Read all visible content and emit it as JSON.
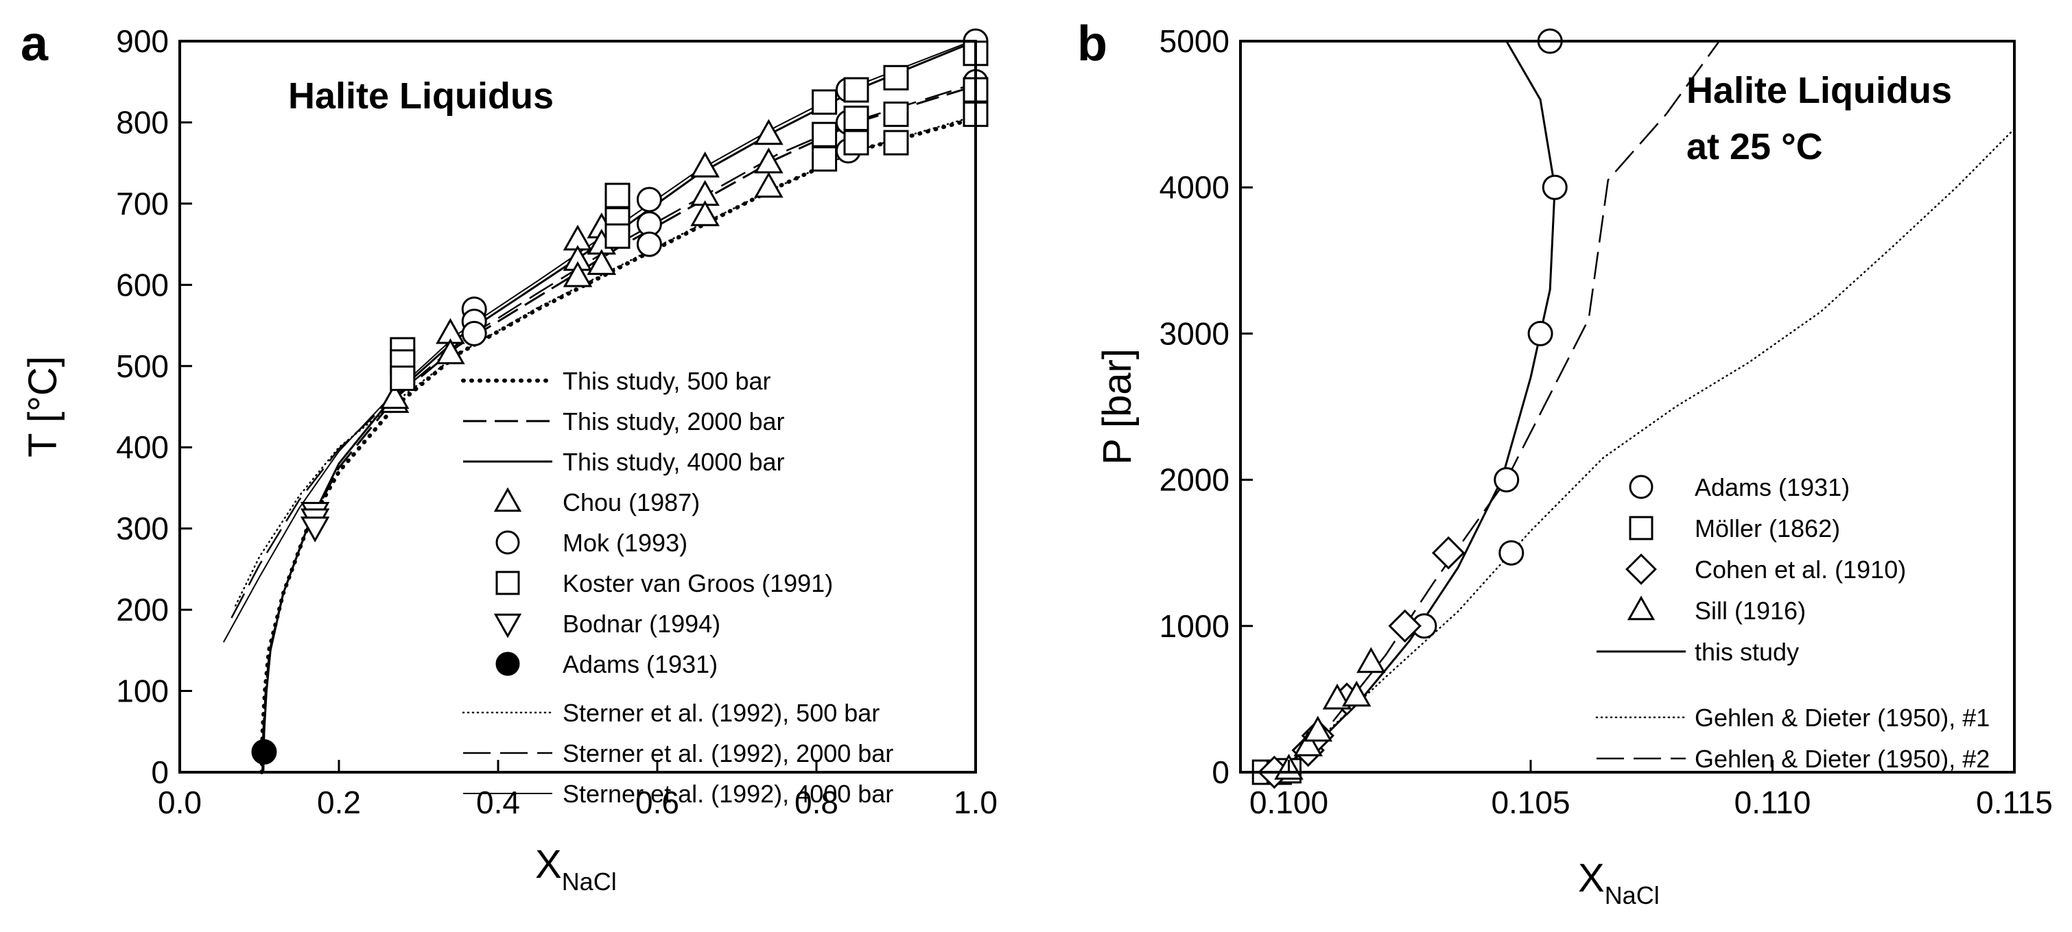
{
  "chart_data": [
    {
      "panel": "a",
      "type": "scatter",
      "title": "Halite Liquidus",
      "xlabel": "X",
      "xlabel_sub": "NaCl",
      "ylabel": "T [°C]",
      "xlim": [
        0.0,
        1.0
      ],
      "ylim": [
        0,
        900
      ],
      "xticks": [
        "0.0",
        "0.2",
        "0.4",
        "0.6",
        "0.8",
        "1.0"
      ],
      "yticks": [
        "0",
        "100",
        "200",
        "300",
        "400",
        "500",
        "600",
        "700",
        "800",
        "900"
      ],
      "legend_position": "center-right",
      "series": [
        {
          "name": "This study, 500 bar",
          "kind": "line",
          "dash": "dot",
          "x": [
            0.103,
            0.104,
            0.107,
            0.112,
            0.13,
            0.16,
            0.2,
            0.27,
            0.35,
            0.45,
            0.55,
            0.65,
            0.75,
            0.85,
            1.0
          ],
          "y": [
            0,
            50,
            100,
            150,
            220,
            300,
            370,
            450,
            515,
            570,
            620,
            670,
            720,
            765,
            805
          ]
        },
        {
          "name": "This study, 2000 bar",
          "kind": "line",
          "dash": "dash",
          "x": [
            0.104,
            0.105,
            0.108,
            0.113,
            0.13,
            0.16,
            0.2,
            0.27,
            0.35,
            0.45,
            0.55,
            0.65,
            0.75,
            0.85,
            1.0
          ],
          "y": [
            0,
            50,
            100,
            150,
            220,
            300,
            375,
            460,
            525,
            585,
            645,
            700,
            755,
            800,
            845
          ]
        },
        {
          "name": "This study, 4000 bar",
          "kind": "line",
          "dash": "solid",
          "x": [
            0.105,
            0.106,
            0.109,
            0.114,
            0.13,
            0.16,
            0.2,
            0.27,
            0.35,
            0.45,
            0.55,
            0.65,
            0.75,
            0.85,
            1.0
          ],
          "y": [
            0,
            50,
            100,
            150,
            220,
            300,
            380,
            465,
            535,
            600,
            665,
            735,
            790,
            840,
            900
          ]
        },
        {
          "name": "Chou (1987)",
          "kind": "marker",
          "marker": "triangle-up",
          "x": [
            0.27,
            0.27,
            0.34,
            0.34,
            0.5,
            0.5,
            0.5,
            0.53,
            0.53,
            0.53,
            0.66,
            0.66,
            0.66,
            0.74,
            0.74,
            0.74
          ],
          "y": [
            455,
            460,
            540,
            515,
            655,
            630,
            610,
            670,
            650,
            625,
            745,
            710,
            685,
            785,
            750,
            720
          ]
        },
        {
          "name": "Mok (1993)",
          "kind": "marker",
          "marker": "circle",
          "x": [
            0.37,
            0.37,
            0.37,
            0.59,
            0.59,
            0.59,
            0.84,
            0.84,
            0.84,
            1.0,
            1.0,
            1.0
          ],
          "y": [
            570,
            555,
            540,
            705,
            675,
            650,
            840,
            800,
            765,
            900,
            850,
            810
          ]
        },
        {
          "name": "Koster van Groos (1991)",
          "kind": "marker",
          "marker": "square",
          "x": [
            0.28,
            0.28,
            0.28,
            0.55,
            0.55,
            0.55,
            0.81,
            0.81,
            0.81,
            0.85,
            0.85,
            0.85,
            0.9,
            0.9,
            0.9,
            1.0,
            1.0,
            1.0
          ],
          "y": [
            520,
            505,
            485,
            710,
            680,
            660,
            825,
            785,
            755,
            840,
            805,
            775,
            855,
            810,
            775,
            885,
            840,
            810
          ]
        },
        {
          "name": "Bodnar (1994)",
          "kind": "marker",
          "marker": "triangle-down",
          "x": [
            0.17,
            0.17,
            0.17
          ],
          "y": [
            320,
            312,
            302
          ]
        },
        {
          "name": "Adams (1931)",
          "kind": "marker",
          "marker": "filled-circle",
          "x": [
            0.106
          ],
          "y": [
            25
          ]
        },
        {
          "name": "Sterner et al. (1992), 500 bar",
          "kind": "line",
          "dash": "fine-dot",
          "x": [
            0.07,
            0.1,
            0.15,
            0.2,
            0.27,
            0.35,
            0.45,
            0.55,
            0.65,
            0.75,
            0.85,
            1.0
          ],
          "y": [
            205,
            265,
            340,
            400,
            455,
            515,
            572,
            622,
            672,
            720,
            765,
            808
          ]
        },
        {
          "name": "Sterner et al. (1992), 2000 bar",
          "kind": "line",
          "dash": "long-dash",
          "x": [
            0.065,
            0.1,
            0.15,
            0.2,
            0.27,
            0.35,
            0.45,
            0.55,
            0.65,
            0.75,
            0.85,
            1.0
          ],
          "y": [
            190,
            255,
            335,
            398,
            462,
            528,
            590,
            650,
            705,
            760,
            802,
            848
          ]
        },
        {
          "name": "Sterner et al. (1992), 4000 bar",
          "kind": "line",
          "dash": "thin-solid",
          "x": [
            0.055,
            0.1,
            0.15,
            0.2,
            0.27,
            0.35,
            0.45,
            0.55,
            0.65,
            0.75,
            0.85,
            1.0
          ],
          "y": [
            160,
            240,
            325,
            395,
            468,
            540,
            605,
            672,
            740,
            795,
            845,
            902
          ]
        }
      ]
    },
    {
      "panel": "b",
      "type": "scatter",
      "title": "Halite Liquidus",
      "title_line2": "at 25 °C",
      "xlabel": "X",
      "xlabel_sub": "NaCl",
      "ylabel": "P [bar]",
      "xlim": [
        0.099,
        0.115
      ],
      "ylim": [
        0,
        5000
      ],
      "xticks": [
        {
          "v": 0.1,
          "label": "0.100"
        },
        {
          "v": 0.105,
          "label": "0.105"
        },
        {
          "v": 0.11,
          "label": "0.110"
        },
        {
          "v": 0.115,
          "label": "0.115"
        }
      ],
      "yticks": [
        "0",
        "1000",
        "2000",
        "3000",
        "4000",
        "5000"
      ],
      "legend_position": "bottom-right",
      "series": [
        {
          "name": "Adams (1931)",
          "kind": "marker",
          "marker": "circle",
          "x": [
            0.1028,
            0.1046,
            0.1045,
            0.1052,
            0.1055,
            0.1054
          ],
          "y": [
            1000,
            1500,
            2000,
            3000,
            4000,
            5000
          ]
        },
        {
          "name": "Möller (1862)",
          "kind": "marker",
          "marker": "square",
          "x": [
            0.0995,
            0.0998,
            0.1
          ],
          "y": [
            0,
            0,
            10
          ]
        },
        {
          "name": "Cohen et al. (1910)",
          "kind": "marker",
          "marker": "diamond",
          "x": [
            0.0997,
            0.1004,
            0.1006,
            0.1012,
            0.1024,
            0.1033
          ],
          "y": [
            0,
            150,
            250,
            500,
            1000,
            1500
          ]
        },
        {
          "name": "Sill (1916)",
          "kind": "marker",
          "marker": "triangle-up",
          "x": [
            0.1,
            0.1004,
            0.1006,
            0.101,
            0.1014,
            0.1017
          ],
          "y": [
            20,
            180,
            280,
            500,
            520,
            750
          ]
        },
        {
          "name": "this study",
          "kind": "line",
          "dash": "solid",
          "x": [
            0.0997,
            0.1006,
            0.1015,
            0.1025,
            0.1035,
            0.1044,
            0.105,
            0.1054,
            0.1055,
            0.1052,
            0.1045
          ],
          "y": [
            0,
            200,
            500,
            900,
            1400,
            2000,
            2700,
            3300,
            4000,
            4600,
            5000
          ]
        },
        {
          "name": "Gehlen & Dieter (1950), #1",
          "kind": "line",
          "dash": "fine-dot",
          "x": [
            0.0998,
            0.1008,
            0.102,
            0.1035,
            0.105,
            0.1065,
            0.108,
            0.1095,
            0.111,
            0.1125,
            0.1138,
            0.115
          ],
          "y": [
            0,
            280,
            650,
            1100,
            1650,
            2150,
            2500,
            2800,
            3150,
            3600,
            4000,
            4400
          ]
        },
        {
          "name": "Gehlen & Dieter (1950), #2",
          "kind": "line",
          "dash": "long-dash",
          "x": [
            0.0998,
            0.1008,
            0.102,
            0.103,
            0.1045,
            0.1062,
            0.1066,
            0.1078,
            0.1089
          ],
          "y": [
            0,
            300,
            800,
            1300,
            2000,
            3100,
            4050,
            4500,
            5000
          ]
        }
      ]
    }
  ]
}
